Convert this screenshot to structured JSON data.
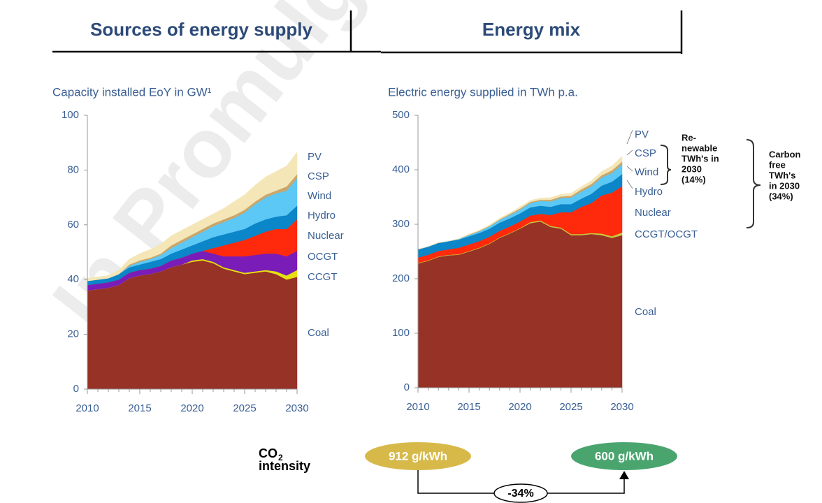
{
  "header": {
    "left": "Sources of energy supply",
    "right": "Energy mix"
  },
  "watermark": "In Promulga",
  "chart_data": [
    {
      "type": "stacked_area",
      "title": "Capacity installed EoY in GW¹",
      "x": [
        2010,
        2011,
        2012,
        2013,
        2014,
        2015,
        2016,
        2017,
        2018,
        2019,
        2020,
        2021,
        2022,
        2023,
        2024,
        2025,
        2026,
        2027,
        2028,
        2029,
        2030
      ],
      "xlim": [
        2010,
        2030
      ],
      "xticks": [
        2010,
        2015,
        2020,
        2025,
        2030
      ],
      "ylim": [
        0,
        100
      ],
      "yticks": [
        0,
        20,
        40,
        60,
        80,
        100
      ],
      "series": [
        {
          "name": "Coal",
          "color": "#963226",
          "values": [
            36,
            36.5,
            37,
            38,
            40.5,
            41.5,
            42,
            43,
            44.5,
            45.5,
            46.5,
            47,
            46,
            44,
            43,
            42,
            42.5,
            43,
            42,
            40,
            41
          ]
        },
        {
          "name": "CCGT",
          "color": "#e6e010",
          "values": [
            0,
            0,
            0,
            0,
            0,
            0,
            0,
            0,
            0,
            0,
            0.5,
            0.5,
            0.5,
            0.5,
            0.5,
            0.5,
            0.5,
            0.5,
            1,
            1.5,
            2.5
          ]
        },
        {
          "name": "OCGT",
          "color": "#7a1cb8",
          "values": [
            2,
            2,
            2,
            2,
            2,
            2,
            2,
            2,
            2.5,
            2.5,
            2.5,
            3,
            3,
            4,
            5,
            6,
            6,
            6,
            6.5,
            7,
            7
          ]
        },
        {
          "name": "Nuclear",
          "color": "#ff2a0c",
          "values": [
            0,
            0,
            0,
            0,
            0,
            0,
            0,
            0,
            0,
            0,
            0,
            0,
            2,
            4,
            5,
            6,
            7,
            8,
            9,
            10,
            11.5
          ]
        },
        {
          "name": "Hydro",
          "color": "#0b86c8",
          "values": [
            1.5,
            1.5,
            1.5,
            2,
            2,
            2,
            2.5,
            2.5,
            2.5,
            3,
            3,
            3.5,
            4,
            4,
            4,
            4,
            4.5,
            4.5,
            4.5,
            5,
            5
          ]
        },
        {
          "name": "Wind",
          "color": "#5cc8f5",
          "values": [
            0,
            0,
            0,
            0,
            0.5,
            1,
            1,
            1.5,
            2,
            2.5,
            3,
            3.5,
            4,
            4.5,
            5,
            6,
            7,
            8,
            8.5,
            9,
            10
          ]
        },
        {
          "name": "CSP",
          "color": "#c9a66b",
          "values": [
            0,
            0,
            0,
            0,
            0.5,
            0.5,
            0.5,
            0.5,
            1,
            1,
            1,
            1,
            1,
            1,
            1,
            1,
            1,
            1,
            1,
            1.5,
            1.5
          ]
        },
        {
          "name": "PV",
          "color": "#f5e6b8",
          "values": [
            1,
            1,
            1,
            1.5,
            2,
            2.5,
            3,
            3.5,
            3.5,
            3.5,
            3.5,
            3.5,
            3.5,
            4,
            5,
            5.5,
            6,
            6.5,
            7,
            7.5,
            8
          ]
        }
      ]
    },
    {
      "type": "stacked_area",
      "title": "Electric energy supplied in TWh p.a.",
      "x": [
        2010,
        2011,
        2012,
        2013,
        2014,
        2015,
        2016,
        2017,
        2018,
        2019,
        2020,
        2021,
        2022,
        2023,
        2024,
        2025,
        2026,
        2027,
        2028,
        2029,
        2030
      ],
      "xlim": [
        2010,
        2030
      ],
      "xticks": [
        2010,
        2015,
        2020,
        2025,
        2030
      ],
      "ylim": [
        0,
        500
      ],
      "yticks": [
        0,
        100,
        200,
        300,
        400,
        500
      ],
      "series": [
        {
          "name": "Coal",
          "color": "#963226",
          "values": [
            228,
            233,
            240,
            243,
            244,
            250,
            256,
            264,
            275,
            283,
            292,
            302,
            305,
            295,
            292,
            280,
            280,
            282,
            280,
            275,
            280
          ]
        },
        {
          "name": "CCGT/OCGT",
          "color": "#c8c83c",
          "values": [
            1,
            1,
            1,
            1,
            1,
            1,
            1,
            1,
            1,
            1,
            1,
            2,
            2,
            2,
            2,
            2,
            2,
            2,
            3,
            3,
            5
          ]
        },
        {
          "name": "Nuclear",
          "color": "#ff2a0c",
          "values": [
            10,
            10,
            10,
            10,
            12,
            12,
            12,
            12,
            12,
            12,
            12,
            12,
            12,
            20,
            28,
            40,
            50,
            55,
            70,
            80,
            85
          ]
        },
        {
          "name": "Hydro",
          "color": "#0b86c8",
          "values": [
            15,
            15,
            15,
            15,
            15,
            15,
            15,
            15,
            15,
            15,
            15,
            15,
            15,
            15,
            15,
            15,
            15,
            17,
            18,
            20,
            22
          ]
        },
        {
          "name": "Wind",
          "color": "#5cc8f5",
          "values": [
            0,
            0,
            0,
            0,
            1,
            2,
            3,
            4,
            5,
            6,
            7,
            8,
            9,
            10,
            11,
            12,
            13,
            14,
            15,
            16,
            18
          ]
        },
        {
          "name": "CSP",
          "color": "#c9a66b",
          "values": [
            0,
            0,
            0,
            0,
            0,
            1,
            1,
            1,
            1,
            2,
            2,
            2,
            2,
            3,
            3,
            3,
            4,
            4,
            4,
            5,
            5
          ]
        },
        {
          "name": "PV",
          "color": "#f5e6b8",
          "values": [
            0,
            0,
            0,
            0,
            1,
            1,
            1,
            2,
            2,
            2,
            3,
            3,
            3,
            4,
            4,
            5,
            5,
            6,
            7,
            8,
            10
          ]
        }
      ],
      "annotations": [
        {
          "lines": [
            "Re-",
            "newable",
            "TWh's in",
            "2030",
            "(14%)"
          ]
        },
        {
          "lines": [
            "Carbon",
            "free",
            "TWh's",
            "in 2030",
            "(34%)"
          ]
        }
      ]
    }
  ],
  "co2": {
    "label": "CO",
    "label_sub": "2",
    "label_line2": "intensity",
    "from": "912 g/kWh",
    "to": "600 g/kWh",
    "change": "-34%"
  }
}
